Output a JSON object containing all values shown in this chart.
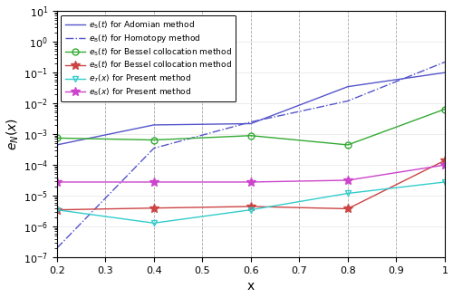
{
  "x": [
    0.2,
    0.4,
    0.6,
    0.8,
    1.0
  ],
  "e5_adomian": [
    0.00045,
    0.002,
    0.0022,
    0.035,
    0.1
  ],
  "e8_homotopy": [
    2e-07,
    0.00035,
    0.0025,
    0.012,
    0.22
  ],
  "e5_bessel": [
    0.00075,
    0.00065,
    0.0009,
    0.00045,
    0.0065
  ],
  "e8_bessel": [
    3.5e-06,
    4e-06,
    4.5e-06,
    3.8e-06,
    0.00014
  ],
  "e7_present": [
    3.5e-06,
    1.3e-06,
    3.5e-06,
    1.2e-05,
    2.8e-05
  ],
  "e8_present": [
    2.8e-05,
    2.8e-05,
    2.8e-05,
    3.2e-05,
    0.0001
  ],
  "xlabel": "x",
  "ylabel": "$e_N(x)$",
  "legend_labels": [
    "$e_5(t)$ for Adomian method",
    "$e_8(t)$ for Homotopy method",
    "$e_5(t)$ for Bessel collocation method",
    "$e_8(t)$ for Bessel collocation method",
    "$e_7(x)$ for Present method",
    "$e_8(x)$ for Present method"
  ],
  "color_adomian": "#5555cc",
  "color_homotopy": "#5555cc",
  "color_bessel5": "#33aa33",
  "color_bessel8": "#cc4444",
  "color_present7": "#33cccc",
  "color_present8": "#cc44cc"
}
